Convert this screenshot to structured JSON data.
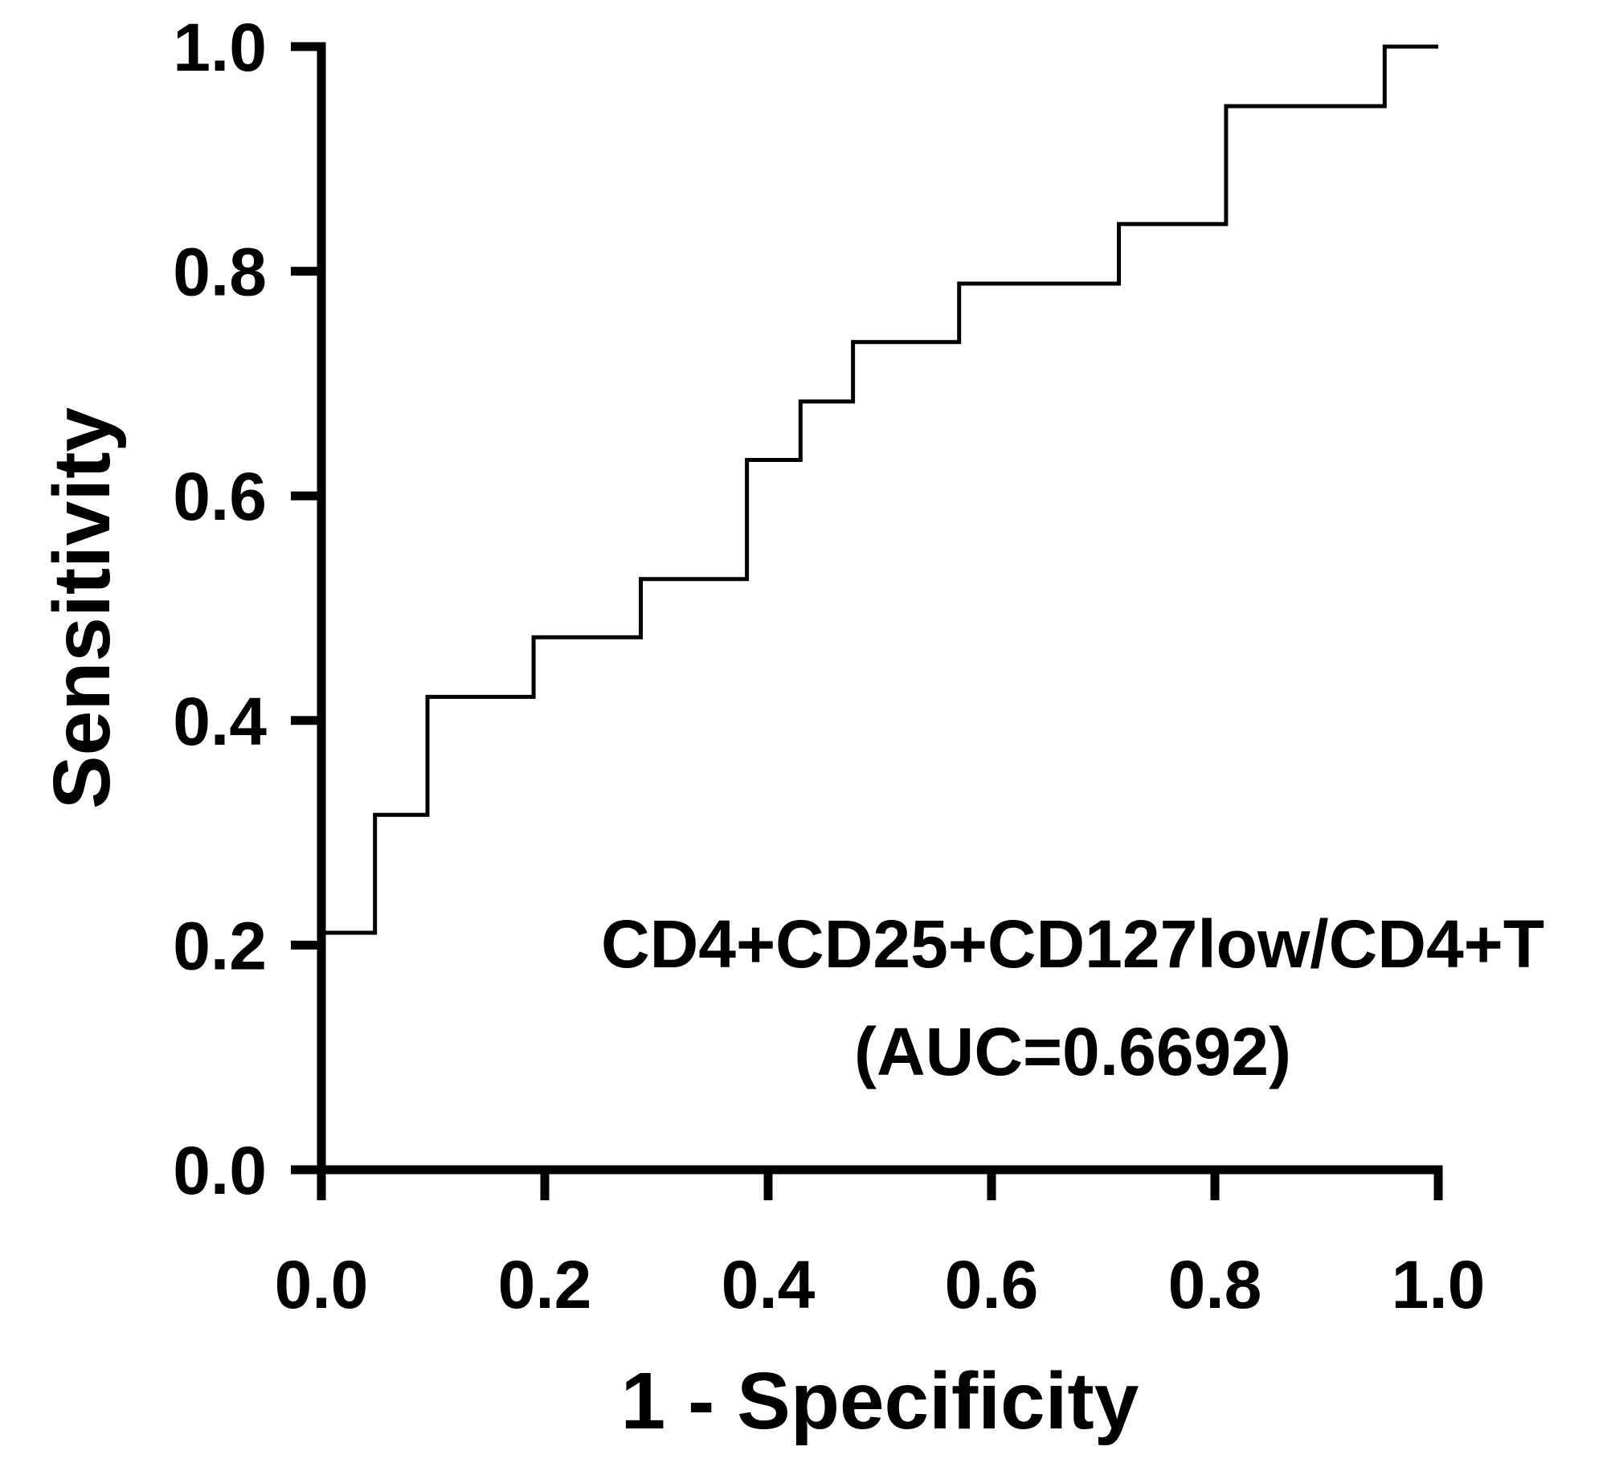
{
  "chart_data": {
    "type": "line",
    "subtype": "roc-step-curve",
    "title": "",
    "xlabel": "1 - Specificity",
    "ylabel": "Sensitivity",
    "xlim": [
      0,
      1
    ],
    "ylim": [
      0,
      1
    ],
    "x_tick_values": [
      0,
      0.2,
      0.4,
      0.6,
      0.8,
      1.0
    ],
    "x_ticks": [
      "0.0",
      "0.2",
      "0.4",
      "0.6",
      "0.8",
      "1.0"
    ],
    "y_tick_values": [
      0,
      0.2,
      0.4,
      0.6,
      0.8,
      1.0
    ],
    "y_ticks": [
      "0.0",
      "0.2",
      "0.4",
      "0.6",
      "0.8",
      "1.0"
    ],
    "grid": false,
    "legend": "none",
    "annotation": {
      "line1": "CD4+CD25+CD127low/CD4+T",
      "line2": "(AUC=0.6692)"
    },
    "series": [
      {
        "name": "CD4+CD25+CD127low/CD4+T",
        "auc": 0.6692,
        "points": [
          [
            0.0,
            0.0
          ],
          [
            0.0,
            0.211
          ],
          [
            0.048,
            0.211
          ],
          [
            0.048,
            0.316
          ],
          [
            0.095,
            0.316
          ],
          [
            0.095,
            0.421
          ],
          [
            0.19,
            0.421
          ],
          [
            0.19,
            0.474
          ],
          [
            0.286,
            0.474
          ],
          [
            0.286,
            0.526
          ],
          [
            0.381,
            0.526
          ],
          [
            0.381,
            0.632
          ],
          [
            0.429,
            0.632
          ],
          [
            0.429,
            0.684
          ],
          [
            0.476,
            0.684
          ],
          [
            0.476,
            0.737
          ],
          [
            0.571,
            0.737
          ],
          [
            0.571,
            0.789
          ],
          [
            0.714,
            0.789
          ],
          [
            0.714,
            0.842
          ],
          [
            0.81,
            0.842
          ],
          [
            0.81,
            0.947
          ],
          [
            0.952,
            0.947
          ],
          [
            0.952,
            1.0
          ],
          [
            1.0,
            1.0
          ]
        ]
      }
    ],
    "colors": {
      "curve": "#000000",
      "axis": "#000000",
      "text": "#000000",
      "background": "#ffffff"
    }
  }
}
